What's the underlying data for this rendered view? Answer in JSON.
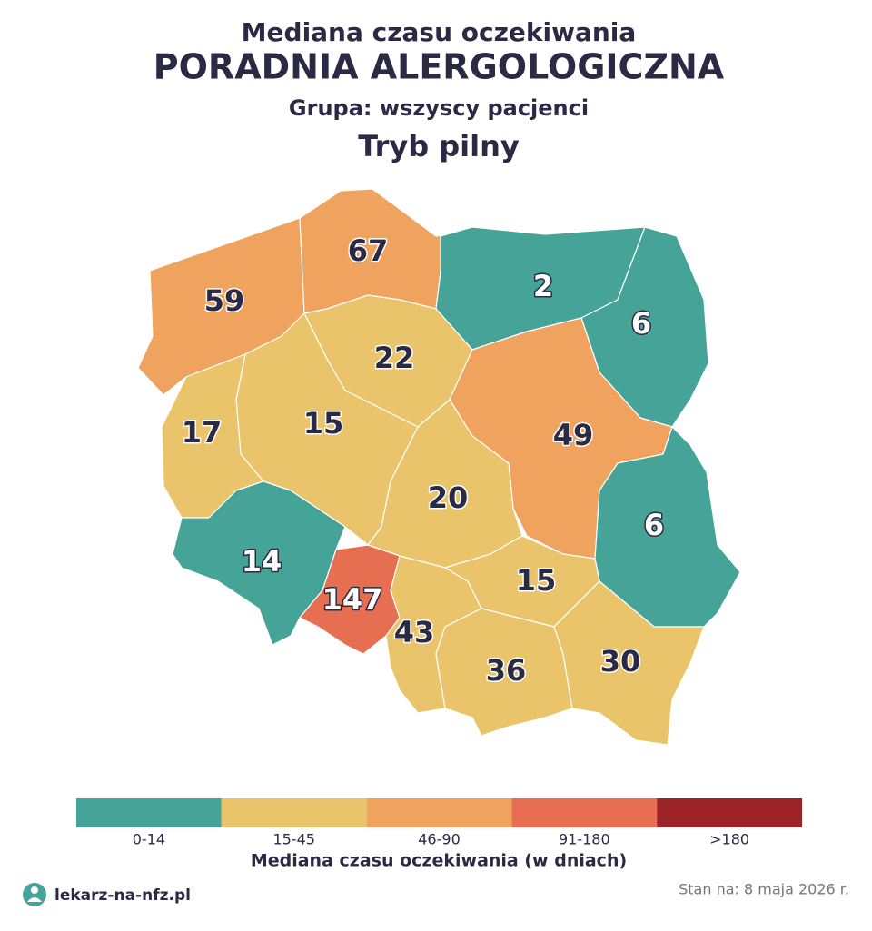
{
  "header": {
    "title": "Mediana czasu oczekiwania",
    "clinic": "PORADNIA ALERGOLOGICZNA",
    "group": "Grupa: wszyscy pacjenci",
    "mode": "Tryb pilny"
  },
  "map": {
    "regions": [
      {
        "value": 59,
        "color": "#f0a35e"
      },
      {
        "value": 67,
        "color": "#f0a35e"
      },
      {
        "value": 2,
        "color": "#45a398"
      },
      {
        "value": 6,
        "color": "#45a398"
      },
      {
        "value": 22,
        "color": "#e9c46a"
      },
      {
        "value": 15,
        "color": "#e9c46a"
      },
      {
        "value": 17,
        "color": "#e9c46a"
      },
      {
        "value": 49,
        "color": "#f0a35e"
      },
      {
        "value": 20,
        "color": "#e9c46a"
      },
      {
        "value": 6,
        "color": "#45a398"
      },
      {
        "value": 14,
        "color": "#45a398"
      },
      {
        "value": 147,
        "color": "#e76f51"
      },
      {
        "value": 43,
        "color": "#e9c46a"
      },
      {
        "value": 15,
        "color": "#e9c46a"
      },
      {
        "value": 36,
        "color": "#e9c46a"
      },
      {
        "value": 30,
        "color": "#e9c46a"
      }
    ]
  },
  "legend": {
    "title": "Mediana czasu oczekiwania (w dniach)",
    "bins": [
      {
        "label": "0-14",
        "color": "#45a398"
      },
      {
        "label": "15-45",
        "color": "#e9c46a"
      },
      {
        "label": "46-90",
        "color": "#f0a35e"
      },
      {
        "label": "91-180",
        "color": "#e76f51"
      },
      {
        "label": ">180",
        "color": "#9b2226"
      }
    ]
  },
  "footer": {
    "site": "lekarz-na-nfz.pl",
    "date": "Stan na: 8 maja 2026 r."
  }
}
